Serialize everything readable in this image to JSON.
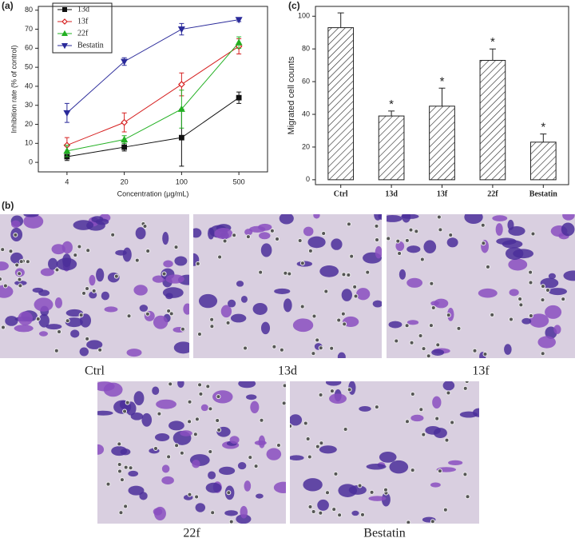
{
  "chart_data": [
    {
      "type": "line",
      "panel": "(a)",
      "xlabel": "Concentration (μg/mL)",
      "ylabel": "Inhibition rate (% of control)",
      "categories": [
        "4",
        "20",
        "100",
        "500"
      ],
      "ylim": [
        -5,
        82
      ],
      "yticks": [
        0,
        10,
        20,
        30,
        40,
        50,
        60,
        70,
        80
      ],
      "series": [
        {
          "name": "13d",
          "color": "#111111",
          "marker": "square",
          "values": [
            3,
            8,
            13,
            34
          ],
          "errors": [
            2,
            2,
            15,
            3
          ]
        },
        {
          "name": "13f",
          "color": "#d62020",
          "marker": "diamond",
          "values": [
            9,
            21,
            41,
            61
          ],
          "errors": [
            4,
            5,
            6,
            4
          ]
        },
        {
          "name": "22f",
          "color": "#22b022",
          "marker": "triangle",
          "values": [
            6,
            12,
            28,
            63
          ],
          "errors": [
            3,
            2,
            10,
            3
          ]
        },
        {
          "name": "Bestatin",
          "color": "#2a2a9a",
          "marker": "down-triangle",
          "values": [
            26,
            53,
            70,
            75
          ],
          "errors": [
            5,
            2,
            3,
            1
          ]
        }
      ]
    },
    {
      "type": "bar",
      "panel": "(c)",
      "ylabel": "Migrated cell counts",
      "categories": [
        "Ctrl",
        "13d",
        "13f",
        "22f",
        "Bestatin"
      ],
      "values": [
        93,
        39,
        45,
        73,
        23
      ],
      "errors": [
        9,
        3,
        11,
        7,
        5
      ],
      "annotations": [
        null,
        "*",
        "*",
        "*",
        "*"
      ],
      "hatch": true,
      "color": "#222222",
      "ylim": [
        -3,
        106
      ],
      "yticks": [
        0,
        20,
        40,
        60,
        80,
        100
      ]
    }
  ],
  "images_panel": {
    "label": "(b)",
    "images": [
      {
        "caption": "Ctrl"
      },
      {
        "caption": "13d"
      },
      {
        "caption": "13f"
      },
      {
        "caption": "22f"
      },
      {
        "caption": "Bestatin"
      }
    ]
  }
}
